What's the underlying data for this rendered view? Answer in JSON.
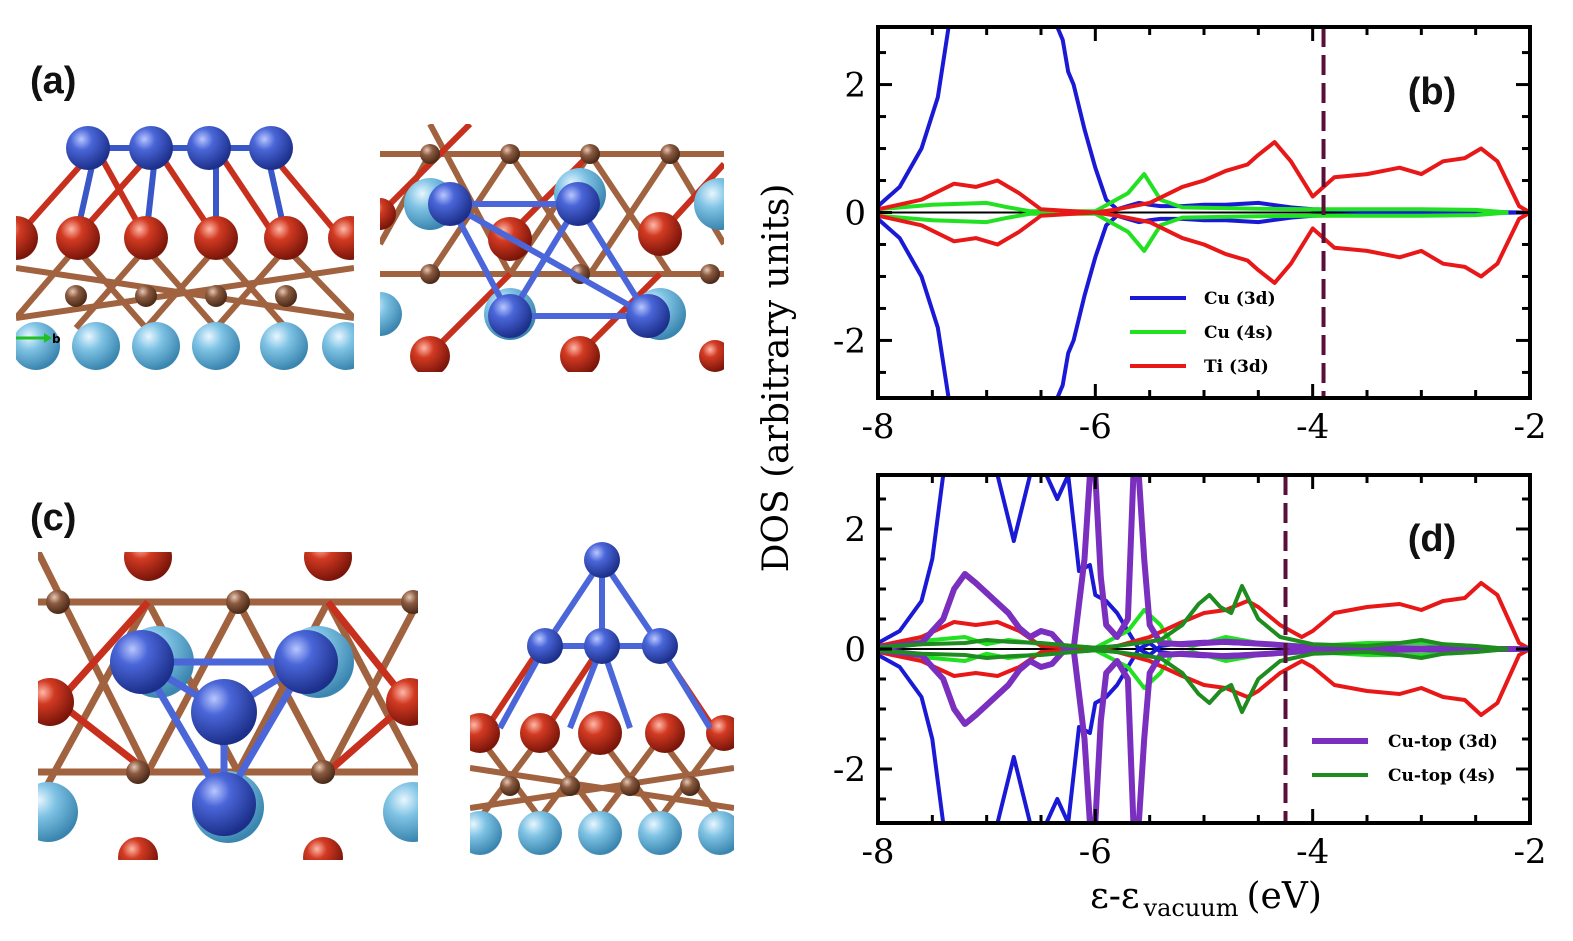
{
  "panels": {
    "a": "(a)",
    "b": "(b)",
    "c": "(c)",
    "d": "(d)"
  },
  "structures": {
    "axis_indicator": "b",
    "atom_colors": {
      "cu": "#3a57c8",
      "o": "#c8301e",
      "ti": "#9a6b4f",
      "substrate": "#7fc3e4"
    }
  },
  "y_axis_label": "DOS (arbitrary units)",
  "x_axis_label": {
    "main": "ε-ε",
    "subscript": "vacuum",
    "unit": "(eV)"
  },
  "chart_data": [
    {
      "panel": "(b)",
      "type": "line",
      "xlim": [
        -8,
        -2
      ],
      "ylim": [
        -2.9,
        2.9
      ],
      "xticks": [
        -8,
        -6,
        -4,
        -2
      ],
      "yticks": [
        -2,
        0,
        2
      ],
      "vline": -3.9,
      "legend": [
        "Cu (3d)",
        "Cu (4s)",
        "Ti (3d)"
      ],
      "legend_position": "bottom-center",
      "series": [
        {
          "name": "Cu (3d)",
          "color": "#1a1ad6",
          "width": 4,
          "x": [
            -8.0,
            -7.8,
            -7.6,
            -7.45,
            -7.35,
            -7.25,
            -7.2,
            -7.15,
            -7.1,
            -7.0,
            -6.8,
            -6.6,
            -6.45,
            -6.4,
            -6.35,
            -6.3,
            -6.25,
            -6.2,
            -6.1,
            -6.0,
            -5.9,
            -5.8,
            -5.7,
            -5.6,
            -5.5,
            -5.4,
            -5.2,
            -5.0,
            -4.8,
            -4.5,
            -4.2,
            -4.0,
            -3.5,
            -3.0,
            -2.5,
            -2.0
          ],
          "up": [
            0.1,
            0.4,
            1.0,
            1.8,
            2.9,
            2.9,
            2.9,
            2.9,
            2.9,
            2.9,
            2.9,
            2.9,
            2.9,
            2.9,
            2.9,
            2.7,
            2.2,
            2.0,
            1.3,
            0.7,
            0.2,
            0.05,
            0.1,
            0.15,
            0.12,
            0.1,
            0.1,
            0.12,
            0.12,
            0.15,
            0.08,
            0.05,
            0.03,
            0.02,
            0.01,
            0.0
          ],
          "down": [
            -0.1,
            -0.4,
            -1.0,
            -1.8,
            -2.9,
            -2.9,
            -2.9,
            -2.9,
            -2.9,
            -2.9,
            -2.9,
            -2.9,
            -2.9,
            -2.9,
            -2.9,
            -2.7,
            -2.2,
            -2.0,
            -1.3,
            -0.7,
            -0.2,
            -0.05,
            -0.1,
            -0.15,
            -0.12,
            -0.1,
            -0.1,
            -0.12,
            -0.12,
            -0.15,
            -0.08,
            -0.05,
            -0.03,
            -0.02,
            -0.01,
            0.0
          ]
        },
        {
          "name": "Cu (4s)",
          "color": "#22e022",
          "width": 4,
          "x": [
            -8.0,
            -7.5,
            -7.0,
            -6.8,
            -6.6,
            -6.0,
            -5.7,
            -5.55,
            -5.4,
            -5.2,
            -4.5,
            -4.0,
            -3.5,
            -3.0,
            -2.5,
            -2.2
          ],
          "up": [
            0.05,
            0.12,
            0.15,
            0.08,
            0.02,
            0.02,
            0.3,
            0.6,
            0.2,
            0.08,
            0.06,
            0.05,
            0.05,
            0.05,
            0.04,
            0.0
          ],
          "down": [
            -0.05,
            -0.12,
            -0.15,
            -0.08,
            -0.02,
            -0.02,
            -0.3,
            -0.6,
            -0.2,
            -0.08,
            -0.06,
            -0.05,
            -0.05,
            -0.05,
            -0.04,
            0.0
          ]
        },
        {
          "name": "Ti (3d)",
          "color": "#e81818",
          "width": 4,
          "x": [
            -8.0,
            -7.6,
            -7.3,
            -7.1,
            -6.9,
            -6.7,
            -6.5,
            -6.2,
            -6.0,
            -5.8,
            -5.5,
            -5.2,
            -5.0,
            -4.8,
            -4.6,
            -4.5,
            -4.35,
            -4.2,
            -4.0,
            -3.8,
            -3.5,
            -3.2,
            -3.0,
            -2.8,
            -2.6,
            -2.45,
            -2.3,
            -2.1,
            -2.0
          ],
          "up": [
            0.05,
            0.2,
            0.45,
            0.4,
            0.5,
            0.3,
            0.05,
            0.02,
            0.0,
            0.05,
            0.15,
            0.4,
            0.5,
            0.65,
            0.75,
            0.9,
            1.1,
            0.8,
            0.25,
            0.55,
            0.6,
            0.7,
            0.6,
            0.8,
            0.85,
            1.0,
            0.8,
            0.1,
            0.0
          ],
          "down": [
            -0.05,
            -0.2,
            -0.45,
            -0.4,
            -0.5,
            -0.3,
            -0.05,
            -0.02,
            0.0,
            -0.05,
            -0.15,
            -0.4,
            -0.5,
            -0.65,
            -0.75,
            -0.9,
            -1.1,
            -0.8,
            -0.25,
            -0.55,
            -0.6,
            -0.7,
            -0.6,
            -0.8,
            -0.85,
            -1.0,
            -0.8,
            -0.1,
            0.0
          ]
        }
      ]
    },
    {
      "panel": "(d)",
      "type": "line",
      "xlim": [
        -8,
        -2
      ],
      "ylim": [
        -2.9,
        2.9
      ],
      "xticks": [
        -8,
        -6,
        -4,
        -2
      ],
      "yticks": [
        -2,
        0,
        2
      ],
      "vline": -4.25,
      "legend": [
        "Cu-top (3d)",
        "Cu-top (4s)"
      ],
      "legend_position": "bottom-right",
      "series": [
        {
          "name": "Cu (3d)",
          "color": "#1a1ad6",
          "width": 4,
          "x": [
            -8.0,
            -7.8,
            -7.6,
            -7.5,
            -7.4,
            -7.3,
            -7.2,
            -7.1,
            -6.9,
            -6.75,
            -6.6,
            -6.45,
            -6.35,
            -6.25,
            -6.15,
            -6.05,
            -6.0,
            -5.9,
            -5.8,
            -5.7,
            -5.6,
            -5.5,
            -5.4,
            -5.2,
            -5.0,
            -4.8,
            -4.5,
            -4.2,
            -4.0,
            -3.5,
            -3.0,
            -2.5,
            -2.0
          ],
          "up": [
            0.1,
            0.3,
            0.8,
            1.5,
            2.9,
            2.9,
            2.9,
            2.9,
            2.9,
            1.8,
            2.9,
            2.9,
            2.5,
            2.9,
            1.3,
            1.4,
            0.9,
            0.8,
            0.6,
            0.3,
            0.0,
            -0.1,
            0.05,
            0.1,
            0.12,
            0.1,
            0.08,
            0.05,
            0.03,
            0.02,
            0.01,
            0.0,
            0.0
          ],
          "down": [
            -0.1,
            -0.3,
            -0.8,
            -1.5,
            -2.9,
            -2.9,
            -2.9,
            -2.9,
            -2.9,
            -1.8,
            -2.9,
            -2.9,
            -2.5,
            -2.9,
            -1.3,
            -1.4,
            -0.9,
            -0.8,
            -0.6,
            -0.3,
            0.0,
            0.1,
            -0.05,
            -0.1,
            -0.12,
            -0.1,
            -0.08,
            -0.05,
            -0.03,
            -0.02,
            -0.01,
            0.0,
            0.0
          ]
        },
        {
          "name": "Cu (4s)",
          "color": "#22e022",
          "width": 4,
          "x": [
            -8.0,
            -7.5,
            -7.2,
            -7.0,
            -6.8,
            -6.5,
            -6.0,
            -5.7,
            -5.55,
            -5.4,
            -5.3,
            -5.1,
            -4.8,
            -4.5,
            -4.0,
            -3.5,
            -3.0,
            -2.5,
            -2.2
          ],
          "up": [
            0.05,
            0.15,
            0.2,
            0.08,
            0.15,
            0.08,
            0.02,
            0.3,
            0.65,
            0.4,
            0.1,
            0.05,
            0.2,
            0.1,
            0.05,
            0.1,
            0.1,
            0.05,
            0.0
          ],
          "down": [
            -0.05,
            -0.15,
            -0.2,
            -0.08,
            -0.15,
            -0.08,
            -0.02,
            -0.3,
            -0.65,
            -0.4,
            -0.1,
            -0.05,
            -0.2,
            -0.1,
            -0.05,
            -0.1,
            -0.1,
            -0.05,
            0.0
          ]
        },
        {
          "name": "Ti (3d)",
          "color": "#e81818",
          "width": 4,
          "x": [
            -8.0,
            -7.6,
            -7.3,
            -7.1,
            -6.9,
            -6.7,
            -6.5,
            -6.2,
            -6.0,
            -5.8,
            -5.5,
            -5.2,
            -5.0,
            -4.8,
            -4.6,
            -4.5,
            -4.3,
            -4.1,
            -4.0,
            -3.8,
            -3.5,
            -3.2,
            -3.0,
            -2.8,
            -2.6,
            -2.45,
            -2.3,
            -2.1,
            -2.0
          ],
          "up": [
            0.05,
            0.2,
            0.45,
            0.4,
            0.45,
            0.3,
            0.05,
            0.02,
            0.0,
            0.05,
            0.2,
            0.45,
            0.6,
            0.65,
            0.8,
            0.7,
            0.4,
            0.2,
            0.3,
            0.6,
            0.7,
            0.75,
            0.65,
            0.8,
            0.85,
            1.1,
            0.9,
            0.1,
            0.0
          ],
          "down": [
            -0.05,
            -0.2,
            -0.45,
            -0.4,
            -0.45,
            -0.3,
            -0.05,
            -0.02,
            0.0,
            -0.05,
            -0.2,
            -0.45,
            -0.6,
            -0.65,
            -0.8,
            -0.7,
            -0.4,
            -0.2,
            -0.3,
            -0.6,
            -0.7,
            -0.75,
            -0.65,
            -0.8,
            -0.85,
            -1.1,
            -0.9,
            -0.1,
            0.0
          ]
        },
        {
          "name": "Cu-top (3d)",
          "color": "#7b2fbf",
          "width": 6,
          "x": [
            -8.0,
            -7.6,
            -7.4,
            -7.3,
            -7.2,
            -7.1,
            -6.95,
            -6.8,
            -6.7,
            -6.6,
            -6.5,
            -6.4,
            -6.3,
            -6.2,
            -6.1,
            -6.05,
            -6.0,
            -5.95,
            -5.9,
            -5.8,
            -5.7,
            -5.65,
            -5.6,
            -5.55,
            -5.5,
            -5.4,
            -5.2,
            -5.0,
            -4.8,
            -4.6,
            -4.4,
            -4.2,
            -4.0,
            -3.5,
            -3.0,
            -2.5,
            -2.0
          ],
          "up": [
            0.02,
            0.1,
            0.5,
            1.0,
            1.25,
            1.1,
            0.85,
            0.6,
            0.35,
            0.2,
            0.3,
            0.25,
            0.05,
            0.0,
            1.5,
            2.9,
            2.9,
            1.2,
            0.4,
            0.2,
            0.5,
            2.9,
            2.9,
            1.5,
            0.4,
            0.1,
            0.08,
            0.1,
            0.12,
            0.1,
            0.08,
            0.05,
            0.02,
            0.02,
            0.01,
            0.0,
            0.0
          ],
          "down": [
            -0.02,
            -0.1,
            -0.5,
            -1.0,
            -1.25,
            -1.1,
            -0.85,
            -0.6,
            -0.35,
            -0.2,
            -0.3,
            -0.25,
            -0.05,
            0.0,
            -1.5,
            -2.9,
            -2.9,
            -1.2,
            -0.4,
            -0.2,
            -0.5,
            -2.9,
            -2.9,
            -1.5,
            -0.4,
            -0.1,
            -0.08,
            -0.1,
            -0.12,
            -0.1,
            -0.08,
            -0.05,
            -0.02,
            -0.02,
            -0.01,
            0.0,
            0.0
          ]
        },
        {
          "name": "Cu-top (4s)",
          "color": "#1e8c1e",
          "width": 4,
          "x": [
            -8.0,
            -7.6,
            -7.2,
            -7.0,
            -6.8,
            -6.5,
            -6.2,
            -6.0,
            -5.8,
            -5.6,
            -5.4,
            -5.2,
            -5.05,
            -4.95,
            -4.85,
            -4.75,
            -4.65,
            -4.5,
            -4.3,
            -4.0,
            -3.5,
            -3.2,
            -3.0,
            -2.8,
            -2.5,
            -2.2
          ],
          "up": [
            0.03,
            0.08,
            0.1,
            0.15,
            0.12,
            0.1,
            0.05,
            0.02,
            0.05,
            0.1,
            0.15,
            0.4,
            0.75,
            0.9,
            0.7,
            0.6,
            1.05,
            0.5,
            0.2,
            0.08,
            0.05,
            0.1,
            0.15,
            0.08,
            0.05,
            0.0
          ],
          "down": [
            -0.03,
            -0.08,
            -0.1,
            -0.15,
            -0.12,
            -0.1,
            -0.05,
            -0.02,
            -0.05,
            -0.1,
            -0.15,
            -0.4,
            -0.75,
            -0.9,
            -0.7,
            -0.6,
            -1.05,
            -0.5,
            -0.2,
            -0.08,
            -0.05,
            -0.1,
            -0.15,
            -0.08,
            -0.05,
            0.0
          ]
        }
      ]
    }
  ]
}
